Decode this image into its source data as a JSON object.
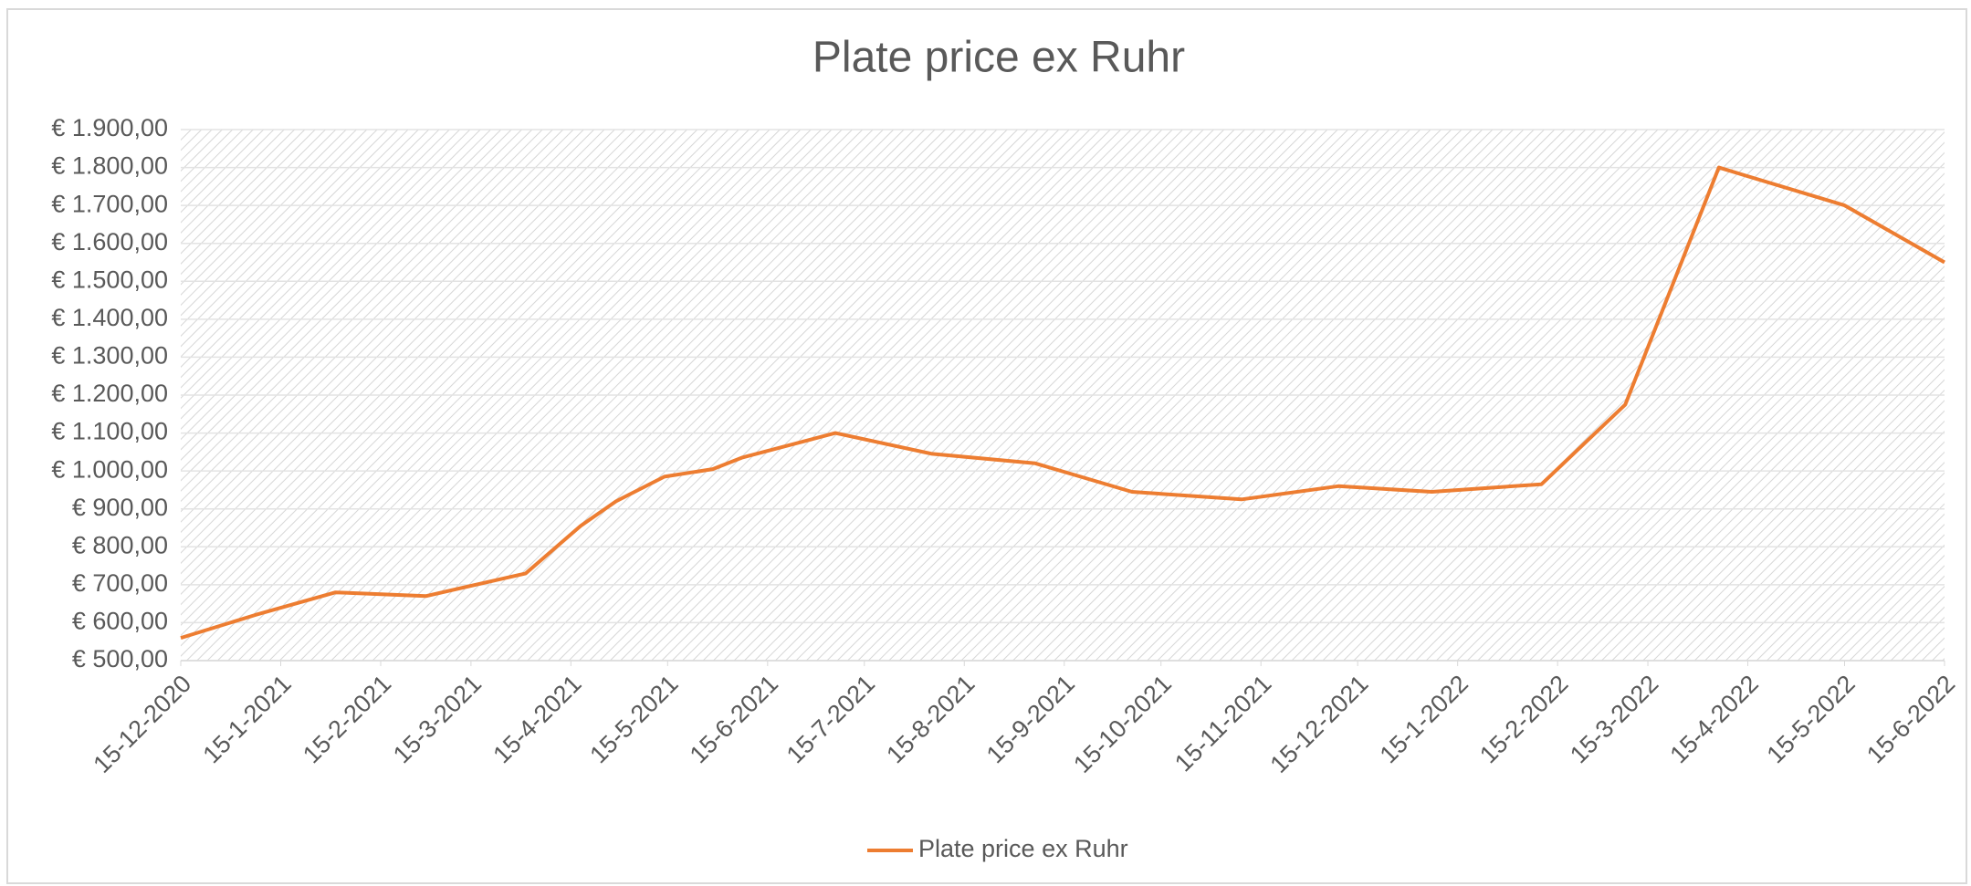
{
  "chart_data": {
    "type": "line",
    "title": "Plate price ex Ruhr",
    "x": [
      "15-12-2020",
      "7-1-2021",
      "1-2-2021",
      "1-3-2021",
      "1-4-2021",
      "18-4-2021",
      "29-4-2021",
      "14-5-2021",
      "29-5-2021",
      "7-6-2021",
      "6-7-2021",
      "5-8-2021",
      "6-9-2021",
      "6-10-2021",
      "9-11-2021",
      "9-12-2021",
      "7-1-2022",
      "10-2-2022",
      "8-3-2022",
      "6-4-2022",
      "15-5-2022",
      "15-6-2022"
    ],
    "series": [
      {
        "name": "Plate price ex Ruhr",
        "color": "#ed7d31",
        "values": [
          560,
          620,
          680,
          670,
          730,
          855,
          920,
          985,
          1005,
          1035,
          1100,
          1045,
          1020,
          945,
          925,
          960,
          945,
          965,
          1175,
          1800,
          1700,
          1550
        ]
      }
    ],
    "xticks": [
      "15-12-2020",
      "15-1-2021",
      "15-2-2021",
      "15-3-2021",
      "15-4-2021",
      "15-5-2021",
      "15-6-2021",
      "15-7-2021",
      "15-8-2021",
      "15-9-2021",
      "15-10-2021",
      "15-11-2021",
      "15-12-2021",
      "15-1-2022",
      "15-2-2022",
      "15-3-2022",
      "15-4-2022",
      "15-5-2022",
      "15-6-2022"
    ],
    "xlim": [
      "15-12-2020",
      "15-6-2022"
    ],
    "ylim": [
      500,
      1900
    ],
    "yticks": [
      {
        "value": 500,
        "label": "€ 500,00"
      },
      {
        "value": 600,
        "label": "€ 600,00"
      },
      {
        "value": 700,
        "label": "€ 700,00"
      },
      {
        "value": 800,
        "label": "€ 800,00"
      },
      {
        "value": 900,
        "label": "€ 900,00"
      },
      {
        "value": 1000,
        "label": "€ 1.000,00"
      },
      {
        "value": 1100,
        "label": "€ 1.100,00"
      },
      {
        "value": 1200,
        "label": "€ 1.200,00"
      },
      {
        "value": 1300,
        "label": "€ 1.300,00"
      },
      {
        "value": 1400,
        "label": "€ 1.400,00"
      },
      {
        "value": 1500,
        "label": "€ 1.500,00"
      },
      {
        "value": 1600,
        "label": "€ 1.600,00"
      },
      {
        "value": 1700,
        "label": "€ 1.700,00"
      },
      {
        "value": 1800,
        "label": "€ 1.800,00"
      },
      {
        "value": 1900,
        "label": "€ 1.900,00"
      }
    ],
    "grid": true,
    "legend": "bottom"
  }
}
